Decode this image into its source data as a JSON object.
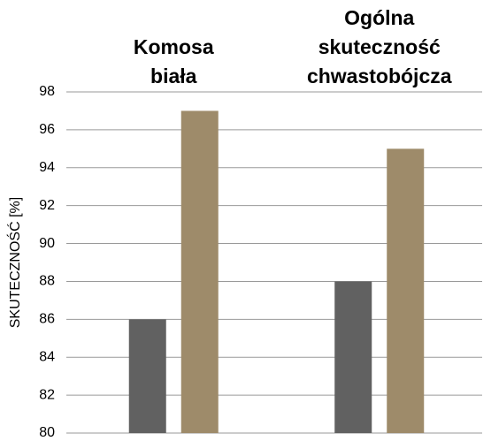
{
  "chart_data": {
    "type": "bar",
    "y_label": "SKUTECZNOŚĆ [%]",
    "categories": [
      "Komosa biała",
      "Ogólna skuteczność chwastobójcza"
    ],
    "series": [
      {
        "color": "#616161",
        "values": [
          86,
          88
        ]
      },
      {
        "color": "#9e8b6a",
        "values": [
          97,
          95
        ]
      }
    ],
    "ylim": [
      80,
      98
    ],
    "yticks": [
      80,
      82,
      84,
      86,
      88,
      90,
      92,
      94,
      96,
      98
    ],
    "grid": true
  }
}
